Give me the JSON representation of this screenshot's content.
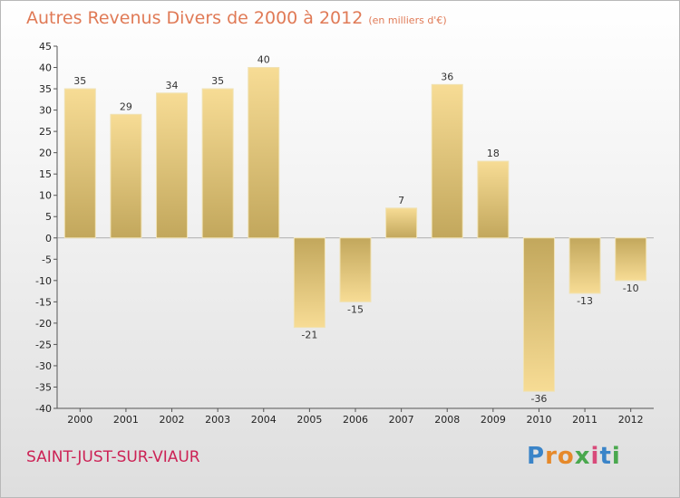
{
  "header": {
    "title": "Autres Revenus Divers de 2000 à 2012",
    "subtitle": "(en milliers d'€)"
  },
  "footer": {
    "commune": "SAINT-JUST-SUR-VIAUR",
    "logo": "Proxiti"
  },
  "chart_data": {
    "type": "bar",
    "title": "Autres Revenus Divers de 2000 à 2012",
    "subtitle": "(en milliers d'€)",
    "xlabel": "",
    "ylabel": "",
    "categories": [
      "2000",
      "2001",
      "2002",
      "2003",
      "2004",
      "2005",
      "2006",
      "2007",
      "2008",
      "2009",
      "2010",
      "2011",
      "2012"
    ],
    "values": [
      35,
      29,
      34,
      35,
      40,
      -21,
      -15,
      7,
      36,
      18,
      -36,
      -13,
      -10
    ],
    "value_labels": [
      "35",
      "29",
      "34",
      "35",
      "40",
      "-21",
      "-15",
      "7",
      "36",
      "18",
      "-36",
      "-13",
      "-10"
    ],
    "ylim": [
      -40,
      45
    ],
    "yticks": [
      "45",
      "40",
      "35",
      "30",
      "25",
      "20",
      "15",
      "10",
      "5",
      "0",
      "-5",
      "-10",
      "-15",
      "-20",
      "-25",
      "-30",
      "-35",
      "-40"
    ],
    "grid": false,
    "legend": "none",
    "colors": {
      "bar_light": "#f7dc95",
      "bar_dark": "#c2a75c",
      "axis": "#555555"
    }
  }
}
